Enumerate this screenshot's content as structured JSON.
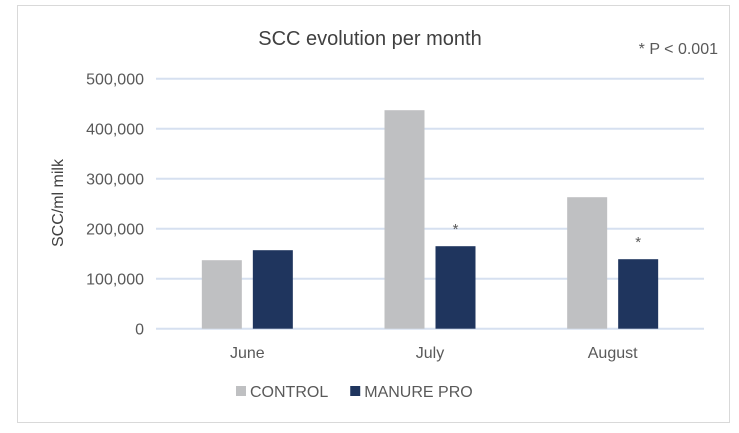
{
  "chart_data": {
    "type": "bar",
    "title": "SCC evolution per month",
    "annotation": "* P < 0.001",
    "xlabel": "",
    "ylabel": "SCC/ml milk",
    "ylim": [
      0,
      500000
    ],
    "yticks": [
      0,
      100000,
      200000,
      300000,
      400000,
      500000
    ],
    "ytick_labels": [
      "0",
      "100,000",
      "200,000",
      "300,000",
      "400,000",
      "500,000"
    ],
    "categories": [
      "June",
      "July",
      "August"
    ],
    "series": [
      {
        "name": "CONTROL",
        "color": "#bfc0c2",
        "values": [
          137000,
          437000,
          263000
        ],
        "markers": [
          "",
          "",
          ""
        ]
      },
      {
        "name": "MANURE PRO",
        "color": "#1f355e",
        "values": [
          157000,
          165000,
          139000
        ],
        "markers": [
          "",
          "*",
          "*"
        ]
      }
    ],
    "grid": true,
    "gridline_color": "#d6e0f0",
    "legend_position": "bottom"
  }
}
